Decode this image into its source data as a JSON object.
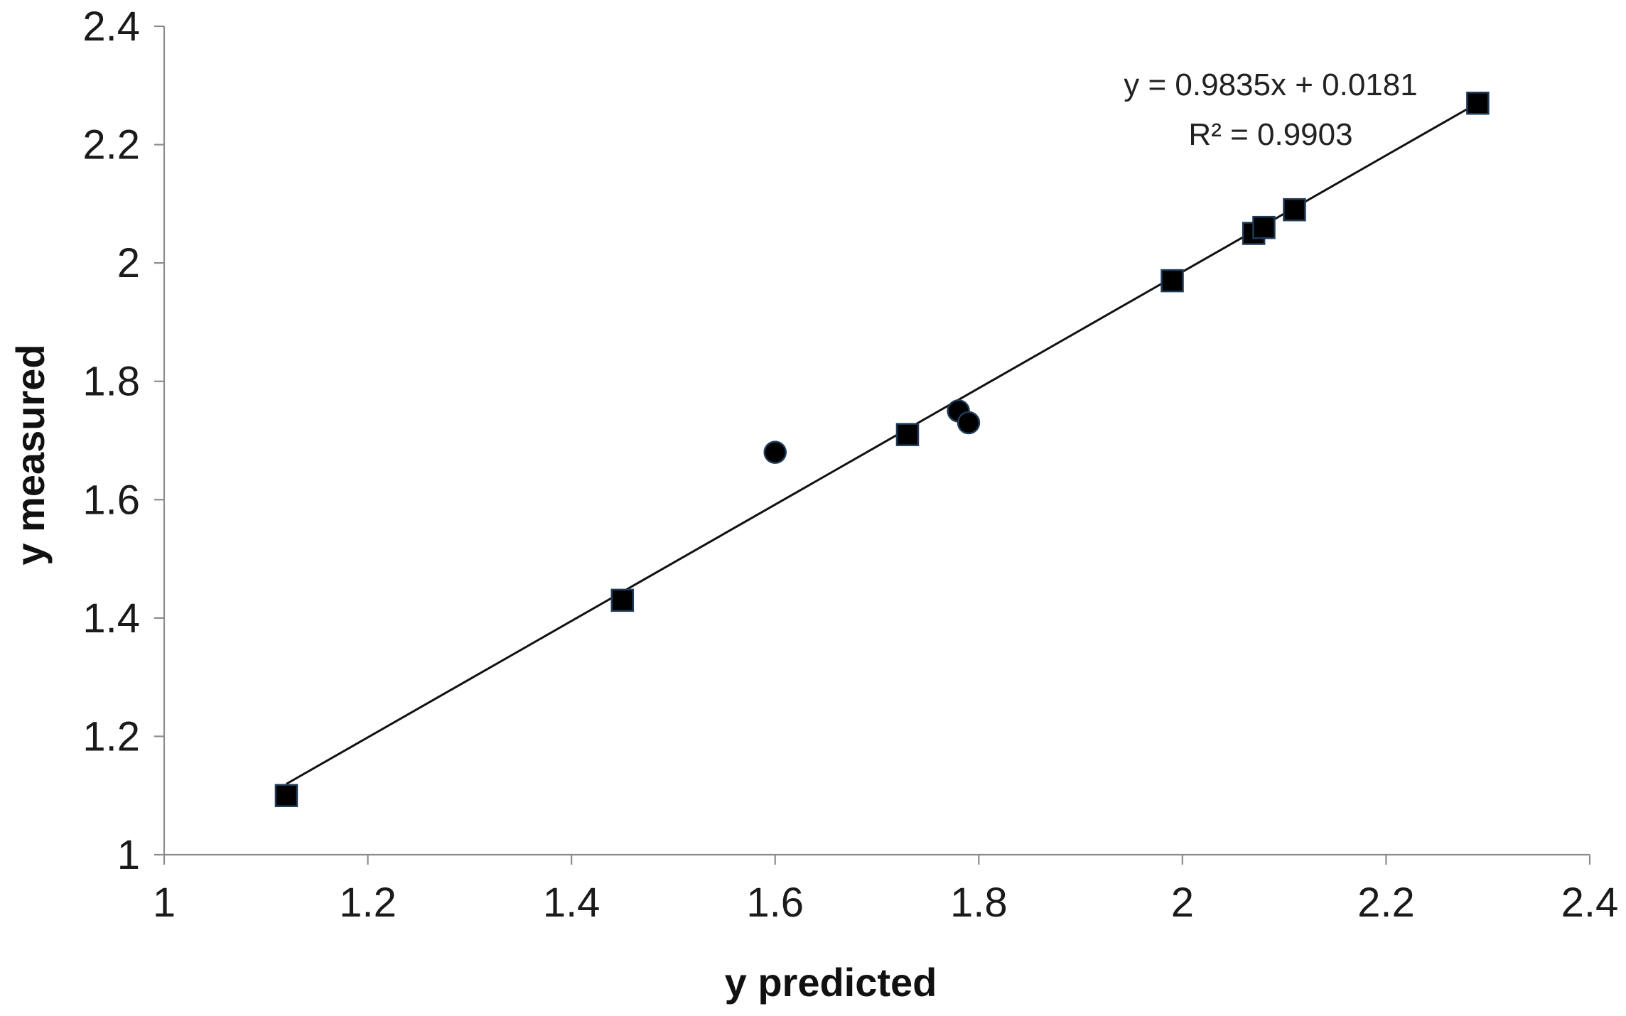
{
  "chart_data": {
    "type": "scatter",
    "title": "",
    "xlabel": "y predicted",
    "ylabel": "y measured",
    "xlim": [
      1,
      2.4
    ],
    "ylim": [
      1,
      2.4
    ],
    "x_ticks": [
      1,
      1.2,
      1.4,
      1.6,
      1.8,
      2,
      2.2,
      2.4
    ],
    "x_tick_labels": [
      "1",
      "1.2",
      "1.4",
      "1.6",
      "1.8",
      "2",
      "2.2",
      "2.4"
    ],
    "y_ticks": [
      1,
      1.2,
      1.4,
      1.6,
      1.8,
      2,
      2.2,
      2.4
    ],
    "y_tick_labels": [
      "1",
      "1.2",
      "1.4",
      "1.6",
      "1.8",
      "2",
      "2.2",
      "2.4"
    ],
    "grid": false,
    "legend": "none",
    "series": [
      {
        "marker": "square",
        "color": "#000000",
        "points": [
          {
            "x": 1.12,
            "y": 1.1
          },
          {
            "x": 1.45,
            "y": 1.43
          },
          {
            "x": 1.73,
            "y": 1.71
          },
          {
            "x": 1.99,
            "y": 1.97
          },
          {
            "x": 2.07,
            "y": 2.05
          },
          {
            "x": 2.08,
            "y": 2.06
          },
          {
            "x": 2.11,
            "y": 2.09
          },
          {
            "x": 2.29,
            "y": 2.27
          }
        ]
      },
      {
        "marker": "circle",
        "color": "#000000",
        "points": [
          {
            "x": 1.6,
            "y": 1.68
          },
          {
            "x": 1.78,
            "y": 1.75
          },
          {
            "x": 1.79,
            "y": 1.73
          }
        ]
      }
    ],
    "trendline": {
      "slope": 0.9835,
      "intercept": 0.0181,
      "x_range": [
        1.12,
        2.29
      ],
      "color": "#111111",
      "equation_label": "y = 0.9835x + 0.0181",
      "r2_label": "R² = 0.9903"
    }
  }
}
